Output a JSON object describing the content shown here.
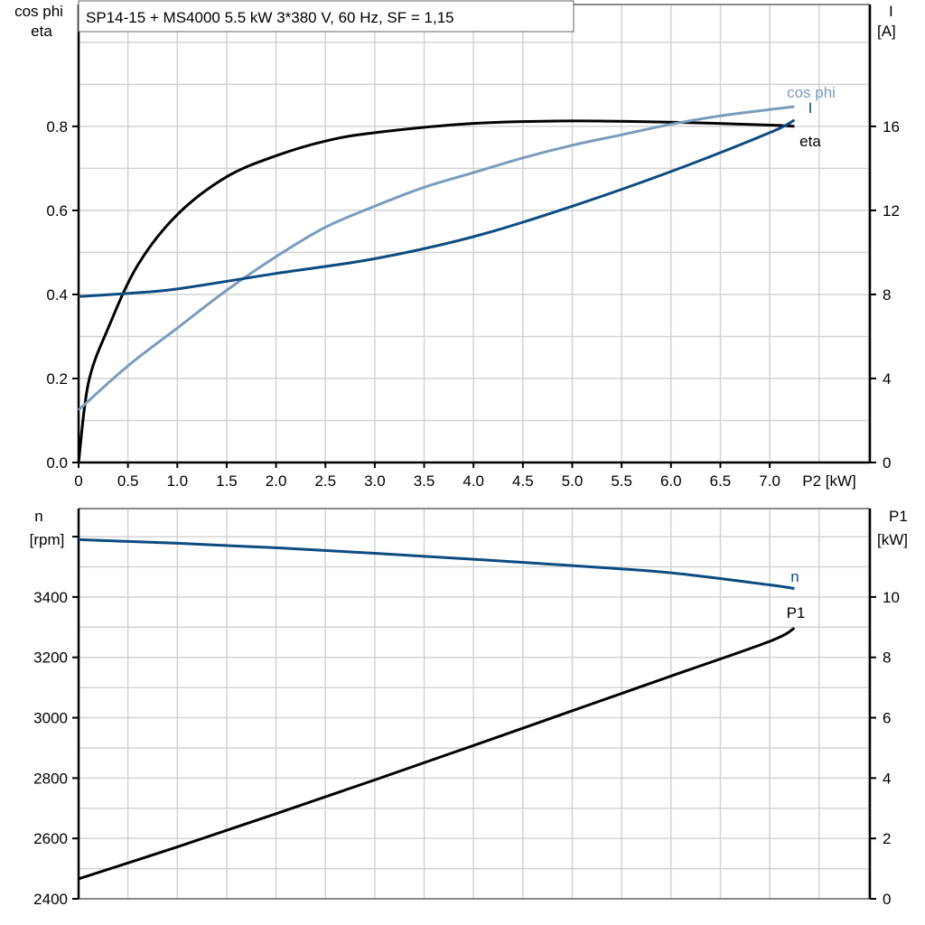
{
  "title": "SP14-15 + MS4000   5.5 kW   3*380 V, 60 Hz, SF = 1,15",
  "chart_data": [
    {
      "type": "line",
      "xlabel": "P2 [kW]",
      "xlim": [
        0,
        8.0
      ],
      "x_ticks": [
        "0",
        "0.5",
        "1.0",
        "1.5",
        "2.0",
        "2.5",
        "3.0",
        "3.5",
        "4.0",
        "4.5",
        "5.0",
        "5.5",
        "6.0",
        "6.5",
        "7.0"
      ],
      "ylabel_left": [
        "cos phi",
        "eta"
      ],
      "ylim_left": [
        0,
        1.09
      ],
      "y_ticks_left": [
        "0.0",
        "0.2",
        "0.4",
        "0.6",
        "0.8"
      ],
      "ylabel_right": [
        "I",
        "[A]"
      ],
      "ylim_right": [
        0,
        21.8
      ],
      "y_ticks_right": [
        "0",
        "4",
        "8",
        "12",
        "16"
      ],
      "grid": true,
      "series": [
        {
          "name": "eta",
          "axis": "left",
          "color": "#000000",
          "x": [
            0,
            0.1,
            0.3,
            0.6,
            1.0,
            1.5,
            2.0,
            2.5,
            3.0,
            4.0,
            5.0,
            6.0,
            7.0,
            7.25
          ],
          "y": [
            0,
            0.19,
            0.32,
            0.47,
            0.59,
            0.68,
            0.73,
            0.765,
            0.785,
            0.807,
            0.813,
            0.81,
            0.803,
            0.8
          ]
        },
        {
          "name": "cos phi",
          "axis": "left",
          "color": "#7a9cbc",
          "x": [
            0,
            0.5,
            1.0,
            1.5,
            2.0,
            2.5,
            3.0,
            3.5,
            4.0,
            4.5,
            5.0,
            5.5,
            6.0,
            6.5,
            7.0,
            7.25
          ],
          "y": [
            0.125,
            0.23,
            0.32,
            0.41,
            0.49,
            0.56,
            0.61,
            0.655,
            0.69,
            0.725,
            0.755,
            0.78,
            0.805,
            0.825,
            0.84,
            0.847
          ]
        },
        {
          "name": "I",
          "axis": "right",
          "color": "#0c4a80",
          "x": [
            0,
            0.5,
            1.0,
            2.0,
            3.0,
            4.0,
            5.0,
            6.0,
            7.0,
            7.25
          ],
          "y": [
            7.9,
            8.05,
            8.26,
            9.0,
            9.7,
            10.75,
            12.2,
            13.85,
            15.7,
            16.3
          ]
        }
      ]
    },
    {
      "type": "line",
      "xlim": [
        0,
        8.0
      ],
      "ylabel_left": [
        "n",
        "[rpm]"
      ],
      "ylim_left": [
        2400,
        3693
      ],
      "y_ticks_left": [
        "2400",
        "2600",
        "2800",
        "3000",
        "3200",
        "3400"
      ],
      "ylabel_right": [
        "P1",
        "[kW]"
      ],
      "ylim_right": [
        0,
        12.93
      ],
      "y_ticks_right": [
        "0",
        "2",
        "4",
        "6",
        "8",
        "10"
      ],
      "grid": true,
      "series": [
        {
          "name": "n",
          "axis": "left",
          "color": "#0c4a80",
          "x": [
            0,
            1,
            2,
            3,
            4,
            5,
            6,
            7,
            7.25
          ],
          "y": [
            3590,
            3578,
            3563,
            3545,
            3525,
            3504,
            3480,
            3440,
            3428
          ]
        },
        {
          "name": "P1",
          "axis": "right",
          "color": "#000000",
          "x": [
            0,
            1,
            2,
            3,
            4,
            5,
            6,
            7,
            7.25
          ],
          "y": [
            0.66,
            1.72,
            2.82,
            3.94,
            5.08,
            6.23,
            7.38,
            8.53,
            8.97
          ]
        }
      ]
    }
  ]
}
